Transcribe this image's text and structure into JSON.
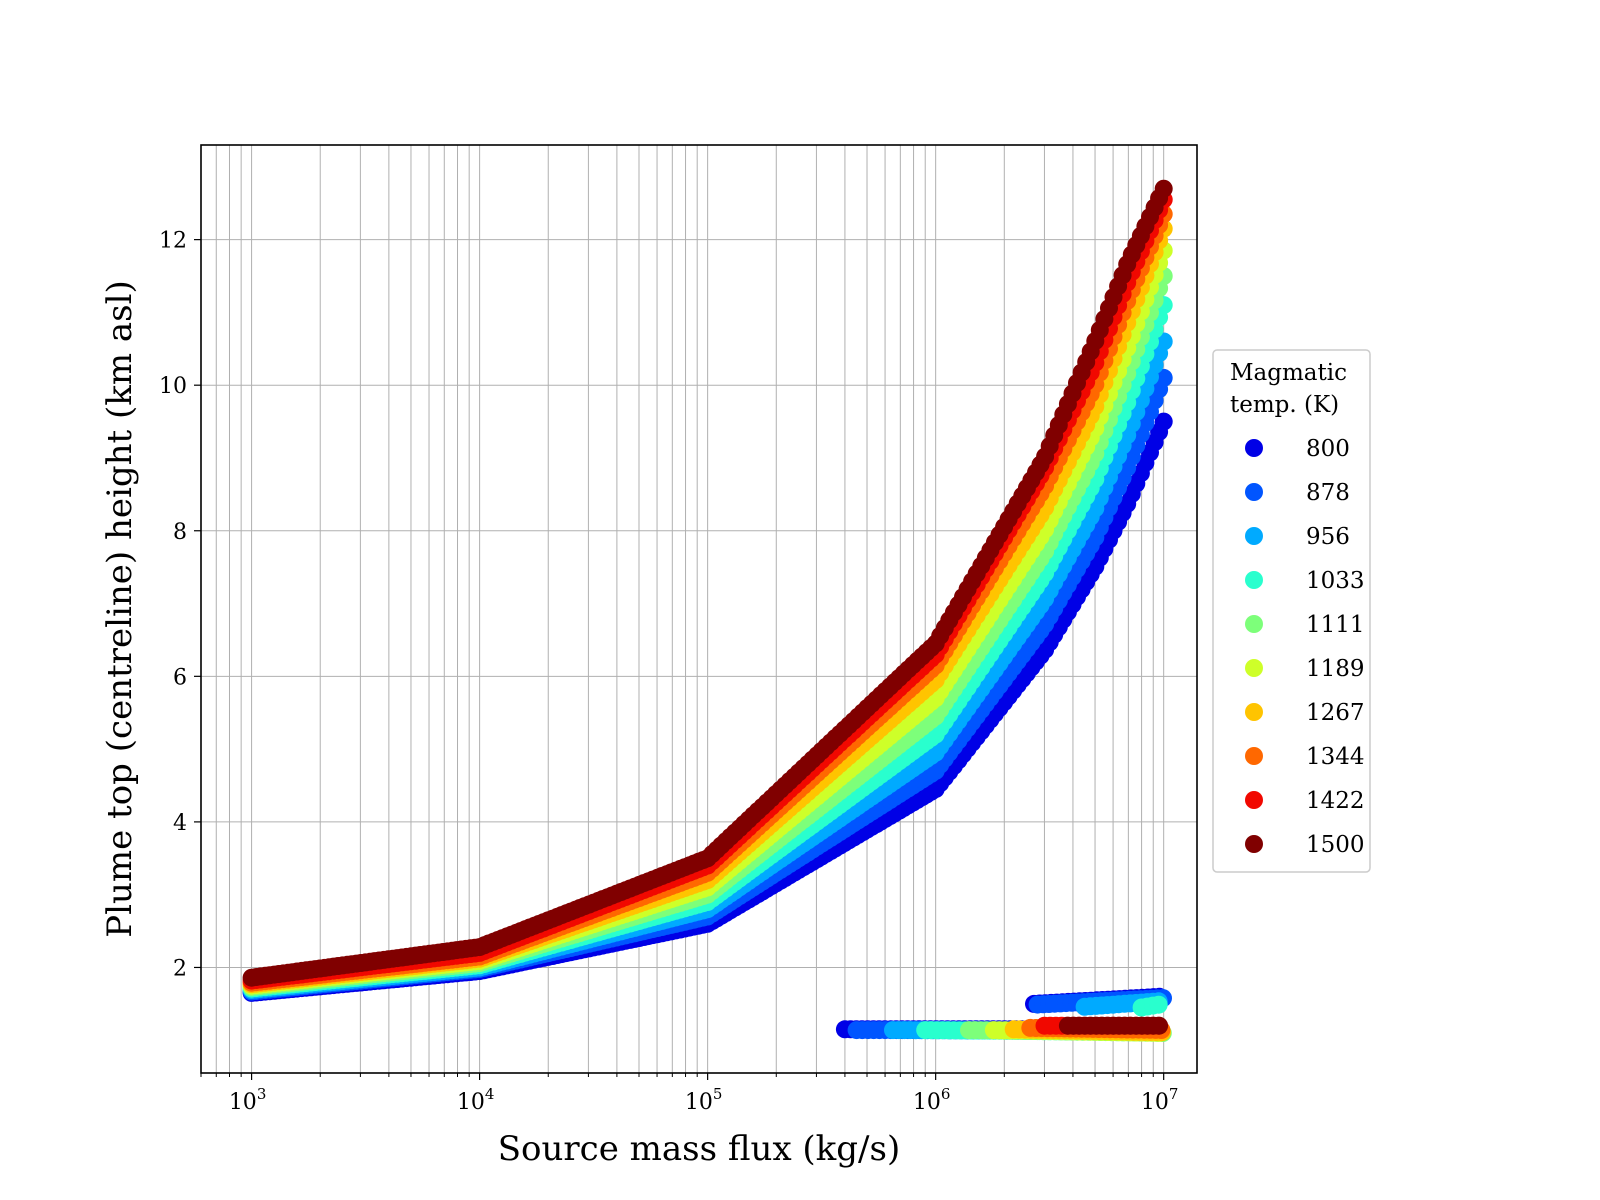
{
  "chart_data": {
    "type": "scatter",
    "xlabel": "Source mass flux (kg/s)",
    "ylabel": "Plume top (centreline) height (km asl)",
    "xscale": "log",
    "xlim": [
      600,
      14000000
    ],
    "ylim": [
      0.55,
      13.3
    ],
    "grid": true,
    "x_ticks": [
      {
        "value": 1000,
        "base": "10",
        "exp": "3"
      },
      {
        "value": 10000,
        "base": "10",
        "exp": "4"
      },
      {
        "value": 100000,
        "base": "10",
        "exp": "5"
      },
      {
        "value": 1000000,
        "base": "10",
        "exp": "6"
      },
      {
        "value": 10000000,
        "base": "10",
        "exp": "7"
      }
    ],
    "y_ticks": [
      2,
      4,
      6,
      8,
      10,
      12
    ],
    "legend": {
      "title_line1": "Magmatic",
      "title_line2": "temp. (K)",
      "placement": "right"
    },
    "series": [
      {
        "name": "800",
        "color": "#0000e6",
        "main": [
          [
            1000,
            1.65
          ],
          [
            10000,
            1.95
          ],
          [
            100000,
            2.6
          ],
          [
            1000000,
            4.45
          ],
          [
            3000000,
            6.35
          ],
          [
            5000000,
            7.5
          ],
          [
            7000000,
            8.4
          ],
          [
            10000000,
            9.5
          ]
        ],
        "low_branch": [
          [
            400000,
            1.15
          ],
          [
            10000000,
            1.15
          ]
        ],
        "high_branch": [
          [
            2700000,
            1.5
          ],
          [
            10000000,
            1.6
          ]
        ]
      },
      {
        "name": "878",
        "color": "#0055ff",
        "main": [
          [
            1000,
            1.67
          ],
          [
            10000,
            1.98
          ],
          [
            100000,
            2.7
          ],
          [
            1000000,
            4.7
          ],
          [
            3000000,
            6.7
          ],
          [
            5000000,
            7.9
          ],
          [
            7000000,
            8.9
          ],
          [
            10000000,
            10.1
          ]
        ],
        "low_branch": [
          [
            450000,
            1.14
          ],
          [
            10000000,
            1.14
          ]
        ],
        "high_branch": [
          [
            2800000,
            1.49
          ],
          [
            10000000,
            1.58
          ]
        ]
      },
      {
        "name": "956",
        "color": "#00aaff",
        "main": [
          [
            1000,
            1.69
          ],
          [
            10000,
            2.0
          ],
          [
            100000,
            2.8
          ],
          [
            1000000,
            4.95
          ],
          [
            3000000,
            7.05
          ],
          [
            5000000,
            8.3
          ],
          [
            7000000,
            9.35
          ],
          [
            10000000,
            10.6
          ]
        ],
        "low_branch": [
          [
            650000,
            1.14
          ],
          [
            10000000,
            1.12
          ]
        ],
        "high_branch": [
          [
            4500000,
            1.46
          ],
          [
            10000000,
            1.54
          ]
        ]
      },
      {
        "name": "1033",
        "color": "#29ffce",
        "main": [
          [
            1000,
            1.71
          ],
          [
            10000,
            2.03
          ],
          [
            100000,
            2.9
          ],
          [
            1000000,
            5.2
          ],
          [
            3000000,
            7.4
          ],
          [
            5000000,
            8.7
          ],
          [
            7000000,
            9.8
          ],
          [
            10000000,
            11.1
          ]
        ],
        "low_branch": [
          [
            900000,
            1.14
          ],
          [
            10000000,
            1.11
          ]
        ],
        "high_branch": [
          [
            8000000,
            1.45
          ],
          [
            10000000,
            1.5
          ]
        ]
      },
      {
        "name": "1111",
        "color": "#7dff7a",
        "main": [
          [
            1000,
            1.73
          ],
          [
            10000,
            2.06
          ],
          [
            100000,
            3.0
          ],
          [
            1000000,
            5.45
          ],
          [
            3000000,
            7.7
          ],
          [
            5000000,
            9.05
          ],
          [
            7000000,
            10.2
          ],
          [
            10000000,
            11.5
          ]
        ],
        "low_branch": [
          [
            1400000,
            1.14
          ],
          [
            10000000,
            1.1
          ]
        ],
        "high_branch": []
      },
      {
        "name": "1189",
        "color": "#ceff29",
        "main": [
          [
            1000,
            1.75
          ],
          [
            10000,
            2.09
          ],
          [
            100000,
            3.1
          ],
          [
            1000000,
            5.7
          ],
          [
            3000000,
            8.0
          ],
          [
            5000000,
            9.4
          ],
          [
            7000000,
            10.55
          ],
          [
            10000000,
            11.85
          ]
        ],
        "low_branch": [
          [
            1800000,
            1.14
          ],
          [
            10000000,
            1.1
          ]
        ],
        "high_branch": []
      },
      {
        "name": "1267",
        "color": "#ffc400",
        "main": [
          [
            1000,
            1.77
          ],
          [
            10000,
            2.12
          ],
          [
            100000,
            3.2
          ],
          [
            1000000,
            5.95
          ],
          [
            3000000,
            8.3
          ],
          [
            5000000,
            9.7
          ],
          [
            7000000,
            10.9
          ],
          [
            10000000,
            12.15
          ]
        ],
        "low_branch": [
          [
            2200000,
            1.15
          ],
          [
            10000000,
            1.11
          ]
        ],
        "high_branch": []
      },
      {
        "name": "1344",
        "color": "#ff6800",
        "main": [
          [
            1000,
            1.79
          ],
          [
            10000,
            2.15
          ],
          [
            100000,
            3.3
          ],
          [
            1000000,
            6.15
          ],
          [
            3000000,
            8.6
          ],
          [
            5000000,
            10.0
          ],
          [
            7000000,
            11.2
          ],
          [
            10000000,
            12.35
          ]
        ],
        "low_branch": [
          [
            2600000,
            1.17
          ],
          [
            10000000,
            1.14
          ]
        ],
        "high_branch": []
      },
      {
        "name": "1422",
        "color": "#f10800",
        "main": [
          [
            1000,
            1.82
          ],
          [
            10000,
            2.2
          ],
          [
            100000,
            3.4
          ],
          [
            1000000,
            6.3
          ],
          [
            3000000,
            8.85
          ],
          [
            5000000,
            10.3
          ],
          [
            7000000,
            11.45
          ],
          [
            10000000,
            12.55
          ]
        ],
        "low_branch": [
          [
            3000000,
            1.2
          ],
          [
            10000000,
            1.2
          ]
        ],
        "high_branch": []
      },
      {
        "name": "1500",
        "color": "#800000",
        "main": [
          [
            1000,
            1.86
          ],
          [
            10000,
            2.28
          ],
          [
            100000,
            3.5
          ],
          [
            1000000,
            6.45
          ],
          [
            3000000,
            9.0
          ],
          [
            5000000,
            10.6
          ],
          [
            7000000,
            11.7
          ],
          [
            10000000,
            12.7
          ]
        ],
        "low_branch": [
          [
            3800000,
            1.2
          ],
          [
            10000000,
            1.2
          ]
        ],
        "high_branch": []
      }
    ]
  }
}
